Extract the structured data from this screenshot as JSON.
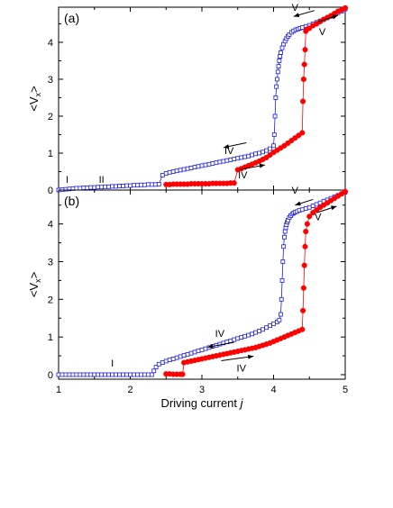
{
  "chart_data": [
    {
      "panel_label": "(a)",
      "type": "scatter",
      "xlim": [
        1,
        5
      ],
      "ylim": [
        0,
        4.95
      ],
      "y_ticks": [
        0,
        1,
        2,
        3,
        4
      ],
      "ylabel": "<V",
      "ylabel_sub": "x",
      "ylabel_tail": ">",
      "grid": false,
      "annotations": [
        {
          "text": "I",
          "x": 1.12,
          "y": 0.2
        },
        {
          "text": "II",
          "x": 1.6,
          "y": 0.2
        },
        {
          "text": "IV",
          "x": 3.38,
          "y": 0.98
        },
        {
          "text": "IV",
          "x": 3.57,
          "y": 0.32
        },
        {
          "text": "V",
          "x": 4.3,
          "y": 4.85
        },
        {
          "text": "V",
          "x": 4.68,
          "y": 4.2
        }
      ],
      "arrows": [
        {
          "x1": 3.62,
          "y1": 1.28,
          "x2": 3.3,
          "y2": 1.15
        },
        {
          "x1": 3.52,
          "y1": 0.55,
          "x2": 3.88,
          "y2": 0.68
        },
        {
          "x1": 4.57,
          "y1": 4.86,
          "x2": 4.28,
          "y2": 4.7
        },
        {
          "x1": 4.62,
          "y1": 4.55,
          "x2": 4.9,
          "y2": 4.73
        }
      ],
      "series": [
        {
          "style": "open-square",
          "color": "#1a1aee",
          "x": [
            1.0,
            1.05,
            1.1,
            1.15,
            1.2,
            1.25,
            1.3,
            1.35,
            1.4,
            1.45,
            1.5,
            1.55,
            1.6,
            1.65,
            1.7,
            1.75,
            1.8,
            1.85,
            1.9,
            1.95,
            2.0,
            2.05,
            2.1,
            2.15,
            2.2,
            2.25,
            2.3,
            2.35,
            2.4,
            2.45,
            2.5,
            2.55,
            2.6,
            2.65,
            2.7,
            2.75,
            2.8,
            2.85,
            2.9,
            2.95,
            3.0,
            3.05,
            3.1,
            3.15,
            3.2,
            3.25,
            3.3,
            3.35,
            3.4,
            3.45,
            3.5,
            3.55,
            3.6,
            3.65,
            3.7,
            3.75,
            3.8,
            3.85,
            3.9,
            3.95,
            4.0,
            4.01,
            4.02,
            4.03,
            4.04,
            4.05,
            4.06,
            4.07,
            4.08,
            4.09,
            4.1,
            4.12,
            4.14,
            4.16,
            4.18,
            4.2,
            4.22,
            4.25,
            4.28,
            4.31,
            4.34,
            4.37,
            4.4,
            4.45,
            4.5,
            4.55,
            4.6,
            4.65,
            4.7,
            4.75,
            4.8,
            4.85,
            4.9,
            4.95,
            5.0
          ],
          "y": [
            0.0,
            0.01,
            0.02,
            0.03,
            0.04,
            0.05,
            0.05,
            0.06,
            0.06,
            0.07,
            0.07,
            0.08,
            0.08,
            0.09,
            0.09,
            0.1,
            0.1,
            0.11,
            0.11,
            0.12,
            0.12,
            0.13,
            0.13,
            0.14,
            0.14,
            0.15,
            0.15,
            0.15,
            0.16,
            0.4,
            0.45,
            0.48,
            0.5,
            0.52,
            0.54,
            0.56,
            0.58,
            0.6,
            0.62,
            0.64,
            0.66,
            0.68,
            0.7,
            0.72,
            0.74,
            0.76,
            0.78,
            0.8,
            0.82,
            0.84,
            0.86,
            0.88,
            0.9,
            0.92,
            0.95,
            0.98,
            1.0,
            1.03,
            1.07,
            1.12,
            1.2,
            1.5,
            2.0,
            2.5,
            2.8,
            3.0,
            3.2,
            3.35,
            3.5,
            3.62,
            3.72,
            3.85,
            3.95,
            4.03,
            4.1,
            4.16,
            4.21,
            4.27,
            4.31,
            4.34,
            4.36,
            4.38,
            4.4,
            4.43,
            4.46,
            4.5,
            4.54,
            4.58,
            4.62,
            4.66,
            4.7,
            4.75,
            4.8,
            4.84,
            4.9
          ]
        },
        {
          "style": "filled-circle",
          "color": "#ff0000",
          "x": [
            2.5,
            2.55,
            2.6,
            2.65,
            2.7,
            2.75,
            2.8,
            2.85,
            2.9,
            2.95,
            3.0,
            3.05,
            3.1,
            3.15,
            3.2,
            3.25,
            3.3,
            3.35,
            3.4,
            3.45,
            3.5,
            3.55,
            3.6,
            3.65,
            3.7,
            3.75,
            3.8,
            3.85,
            3.9,
            3.95,
            4.0,
            4.05,
            4.1,
            4.15,
            4.2,
            4.25,
            4.3,
            4.35,
            4.4,
            4.41,
            4.42,
            4.43,
            4.44,
            4.45,
            4.46,
            4.5,
            4.55,
            4.6,
            4.65,
            4.7,
            4.75,
            4.8,
            4.85,
            4.9,
            4.95,
            5.0
          ],
          "y": [
            0.15,
            0.15,
            0.16,
            0.16,
            0.16,
            0.16,
            0.16,
            0.17,
            0.17,
            0.17,
            0.17,
            0.17,
            0.17,
            0.18,
            0.18,
            0.18,
            0.18,
            0.18,
            0.19,
            0.19,
            0.55,
            0.58,
            0.62,
            0.66,
            0.7,
            0.74,
            0.78,
            0.83,
            0.88,
            0.95,
            1.02,
            1.08,
            1.14,
            1.2,
            1.27,
            1.34,
            1.41,
            1.48,
            1.55,
            2.4,
            3.0,
            3.4,
            3.8,
            4.3,
            4.35,
            4.38,
            4.45,
            4.5,
            4.56,
            4.62,
            4.67,
            4.72,
            4.78,
            4.84,
            4.88,
            4.93
          ]
        }
      ]
    },
    {
      "panel_label": "(b)",
      "type": "scatter",
      "xlim": [
        1,
        5
      ],
      "ylim": [
        -0.12,
        4.9
      ],
      "y_ticks": [
        0,
        1,
        2,
        3,
        4
      ],
      "x_ticks": [
        1,
        2,
        3,
        4,
        5
      ],
      "xlabel": "Driving current ",
      "xlabel_italic": "j",
      "ylabel": "<V",
      "ylabel_sub": "x",
      "ylabel_tail": ">",
      "grid": false,
      "annotations": [
        {
          "text": "I",
          "x": 1.75,
          "y": 0.22
        },
        {
          "text": "IV",
          "x": 3.25,
          "y": 1.0
        },
        {
          "text": "IV",
          "x": 3.55,
          "y": 0.08
        },
        {
          "text": "V",
          "x": 4.3,
          "y": 4.8
        },
        {
          "text": "V",
          "x": 4.62,
          "y": 4.1
        }
      ],
      "arrows": [
        {
          "x1": 3.45,
          "y1": 0.86,
          "x2": 3.08,
          "y2": 0.73
        },
        {
          "x1": 3.27,
          "y1": 0.37,
          "x2": 3.72,
          "y2": 0.49
        },
        {
          "x1": 4.55,
          "y1": 4.65,
          "x2": 4.3,
          "y2": 4.5
        },
        {
          "x1": 4.6,
          "y1": 4.3,
          "x2": 4.88,
          "y2": 4.47
        }
      ],
      "series": [
        {
          "style": "open-square",
          "color": "#1a1aee",
          "x": [
            1.0,
            1.05,
            1.1,
            1.15,
            1.2,
            1.25,
            1.3,
            1.35,
            1.4,
            1.45,
            1.5,
            1.55,
            1.6,
            1.65,
            1.7,
            1.75,
            1.8,
            1.85,
            1.9,
            1.95,
            2.0,
            2.05,
            2.1,
            2.15,
            2.2,
            2.25,
            2.3,
            2.33,
            2.36,
            2.4,
            2.45,
            2.5,
            2.55,
            2.6,
            2.65,
            2.7,
            2.75,
            2.8,
            2.85,
            2.9,
            2.95,
            3.0,
            3.05,
            3.1,
            3.15,
            3.2,
            3.25,
            3.3,
            3.35,
            3.4,
            3.45,
            3.5,
            3.55,
            3.6,
            3.65,
            3.7,
            3.75,
            3.8,
            3.85,
            3.9,
            3.95,
            4.0,
            4.05,
            4.08,
            4.1,
            4.11,
            4.12,
            4.13,
            4.14,
            4.15,
            4.16,
            4.17,
            4.18,
            4.19,
            4.2,
            4.22,
            4.24,
            4.26,
            4.28,
            4.3,
            4.33,
            4.36,
            4.4,
            4.45,
            4.5,
            4.55,
            4.6,
            4.65,
            4.7,
            4.75,
            4.8,
            4.85,
            4.9,
            4.95,
            5.0
          ],
          "y": [
            0.0,
            0.0,
            0.0,
            0.0,
            0.0,
            0.0,
            0.0,
            0.0,
            0.0,
            0.0,
            0.0,
            0.0,
            0.0,
            0.0,
            0.0,
            0.0,
            0.0,
            0.0,
            0.0,
            0.0,
            0.0,
            0.0,
            0.0,
            0.0,
            0.0,
            0.0,
            0.0,
            0.1,
            0.2,
            0.28,
            0.32,
            0.36,
            0.39,
            0.42,
            0.45,
            0.48,
            0.51,
            0.54,
            0.57,
            0.6,
            0.63,
            0.66,
            0.69,
            0.72,
            0.75,
            0.78,
            0.81,
            0.84,
            0.87,
            0.9,
            0.93,
            0.96,
            0.99,
            1.02,
            1.05,
            1.08,
            1.12,
            1.16,
            1.2,
            1.25,
            1.3,
            1.35,
            1.4,
            1.45,
            1.6,
            2.0,
            2.5,
            3.0,
            3.4,
            3.65,
            3.8,
            3.9,
            3.98,
            4.05,
            4.1,
            4.17,
            4.22,
            4.26,
            4.29,
            4.31,
            4.33,
            4.36,
            4.38,
            4.41,
            4.44,
            4.48,
            4.52,
            4.56,
            4.6,
            4.64,
            4.68,
            4.72,
            4.76,
            4.8,
            4.84
          ]
        },
        {
          "style": "filled-circle",
          "color": "#ff0000",
          "x": [
            2.5,
            2.55,
            2.6,
            2.65,
            2.7,
            2.73,
            2.75,
            2.8,
            2.85,
            2.9,
            2.95,
            3.0,
            3.05,
            3.1,
            3.15,
            3.2,
            3.25,
            3.3,
            3.35,
            3.4,
            3.45,
            3.5,
            3.55,
            3.6,
            3.65,
            3.7,
            3.75,
            3.8,
            3.85,
            3.9,
            3.95,
            4.0,
            4.05,
            4.1,
            4.15,
            4.2,
            4.25,
            4.3,
            4.35,
            4.4,
            4.41,
            4.42,
            4.43,
            4.44,
            4.45,
            4.47,
            4.5,
            4.55,
            4.6,
            4.65,
            4.7,
            4.75,
            4.8,
            4.85,
            4.9,
            4.95,
            5.0
          ],
          "y": [
            0.02,
            0.02,
            0.01,
            0.01,
            0.01,
            0.01,
            0.32,
            0.34,
            0.36,
            0.38,
            0.4,
            0.42,
            0.44,
            0.46,
            0.48,
            0.5,
            0.52,
            0.54,
            0.56,
            0.58,
            0.6,
            0.62,
            0.64,
            0.66,
            0.68,
            0.7,
            0.72,
            0.75,
            0.78,
            0.81,
            0.84,
            0.88,
            0.92,
            0.96,
            1.0,
            1.04,
            1.08,
            1.12,
            1.16,
            1.2,
            1.7,
            2.3,
            2.9,
            3.4,
            3.8,
            4.0,
            4.2,
            4.3,
            4.37,
            4.44,
            4.5,
            4.56,
            4.62,
            4.68,
            4.74,
            4.8,
            4.86
          ]
        }
      ]
    }
  ]
}
